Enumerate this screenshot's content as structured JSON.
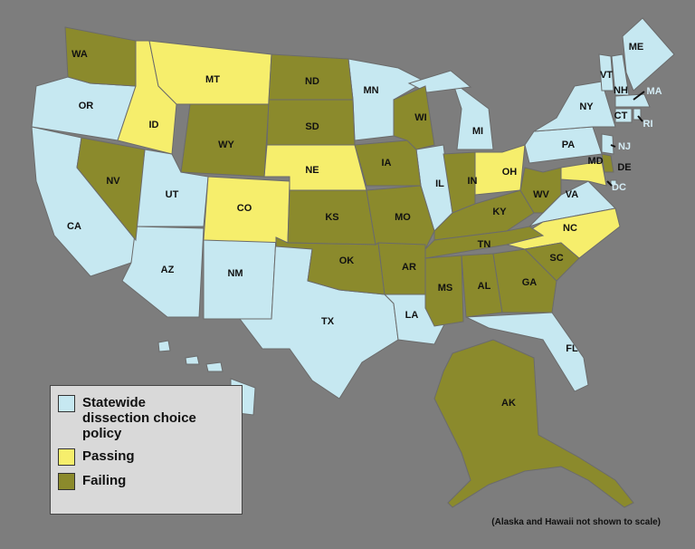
{
  "categories": [
    {
      "label": "Statewide dissection choice policy",
      "color": "#c6e8f1",
      "states": [
        "OR",
        "CA",
        "UT",
        "AZ",
        "NM",
        "TX",
        "MN",
        "LA",
        "IL",
        "MI",
        "FL",
        "VA",
        "PA",
        "NY",
        "NJ",
        "VT",
        "NH",
        "ME",
        "MA",
        "CT",
        "RI",
        "DC",
        "HI"
      ]
    },
    {
      "label": "Passing",
      "color": "#f6ee6c",
      "states": [
        "ID",
        "MT",
        "CO",
        "NE",
        "OH",
        "NC",
        "MD"
      ]
    },
    {
      "label": "Failing",
      "color": "#8b8a2c",
      "states": [
        "WA",
        "NV",
        "WY",
        "ND",
        "SD",
        "KS",
        "OK",
        "IA",
        "MO",
        "AR",
        "WI",
        "IN",
        "KY",
        "TN",
        "MS",
        "AL",
        "GA",
        "SC",
        "WV",
        "DE",
        "AK"
      ]
    }
  ],
  "note": "(Alaska and Hawaii not shown to scale)"
}
